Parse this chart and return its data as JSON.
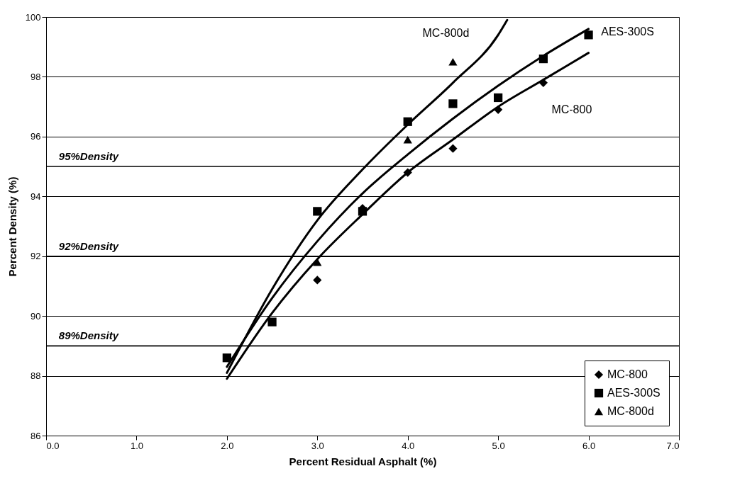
{
  "chart_data": {
    "type": "scatter",
    "xlabel": "Percent Residual Asphalt (%)",
    "ylabel": "Percent Density (%)",
    "series": [
      {
        "name": "MC-800",
        "marker": "diamond",
        "color": "#000000",
        "x": [
          3.0,
          3.5,
          4.0,
          4.5,
          5.0,
          5.5
        ],
        "values": [
          91.2,
          93.6,
          94.8,
          95.6,
          96.9,
          97.8
        ]
      },
      {
        "name": "AES-300S",
        "marker": "square",
        "color": "#000000",
        "x": [
          2.0,
          2.5,
          3.0,
          3.5,
          4.0,
          4.5,
          5.0,
          5.5,
          6.0
        ],
        "values": [
          88.6,
          89.8,
          93.5,
          93.5,
          96.5,
          97.1,
          97.3,
          98.6,
          99.4
        ]
      },
      {
        "name": "MC-800d",
        "marker": "triangle",
        "color": "#000000",
        "x": [
          3.0,
          4.0,
          4.5
        ],
        "values": [
          91.8,
          95.9,
          98.5
        ]
      },
      {
        "type": "line",
        "color": "#000000",
        "x": [
          2.0,
          2.5,
          3.0,
          3.5,
          4.0,
          4.5,
          5.0,
          5.5,
          6.0
        ],
        "values": [
          87.9,
          90.1,
          91.9,
          93.4,
          94.8,
          95.9,
          97.0,
          97.9,
          98.8
        ]
      },
      {
        "type": "line",
        "color": "#000000",
        "x": [
          2.0,
          2.5,
          3.0,
          3.5,
          4.0,
          4.5,
          5.0,
          5.5,
          6.0
        ],
        "values": [
          88.3,
          90.6,
          92.5,
          94.1,
          95.4,
          96.6,
          97.7,
          98.7,
          99.6
        ]
      },
      {
        "type": "line",
        "color": "#000000",
        "x": [
          2.0,
          2.5,
          3.0,
          3.5,
          4.0,
          4.5,
          5.0,
          5.1
        ],
        "values": [
          88.1,
          90.9,
          93.2,
          94.9,
          96.4,
          97.8,
          99.4,
          99.9
        ]
      }
    ],
    "xlim": [
      0,
      7
    ],
    "xticks": [
      {
        "value": 0,
        "label": "0.0"
      },
      {
        "value": 1,
        "label": "1.0"
      },
      {
        "value": 2,
        "label": "2.0"
      },
      {
        "value": 3,
        "label": "3.0"
      },
      {
        "value": 4,
        "label": "4.0"
      },
      {
        "value": 5,
        "label": "5.0"
      },
      {
        "value": 6,
        "label": "6.0"
      },
      {
        "value": 7,
        "label": "7.0"
      }
    ],
    "ylim": [
      86,
      100
    ],
    "yticks": [
      86,
      88,
      90,
      92,
      94,
      96,
      98,
      100
    ],
    "grid": "y",
    "legend": "bottom right",
    "ref_lines": [
      {
        "axis": "y",
        "value": 95,
        "label": "95%Density",
        "color": "#000000"
      },
      {
        "axis": "y",
        "value": 92,
        "label": "92%Density",
        "color": "#000000"
      },
      {
        "axis": "y",
        "value": 89,
        "label": "89%Density",
        "color": "#000000"
      }
    ],
    "annotations": [
      {
        "text": "MC-800d",
        "x": 4.5,
        "y": 98.5
      },
      {
        "text": "AES-300S",
        "x": 6.0,
        "y": 99.4
      },
      {
        "text": "MC-800",
        "x": 5.5,
        "y": 97.8
      }
    ]
  }
}
